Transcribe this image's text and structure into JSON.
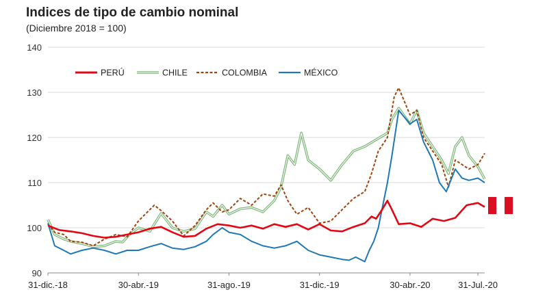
{
  "chart_data": {
    "type": "line",
    "title": "Indices de tipo de cambio nominal",
    "subtitle": "(Diciembre 2018 = 100)",
    "xlabel": "",
    "ylabel": "",
    "ylim": [
      90,
      140
    ],
    "yticks": [
      90,
      100,
      110,
      120,
      130,
      140
    ],
    "x_tick_labels": [
      "31-dic.-18",
      "30-abr.-19",
      "31-ago.-19",
      "31-dic.-19",
      "30-abr.-20",
      "31-Jul.-20"
    ],
    "x_tick_months": [
      0,
      4,
      8,
      12,
      16,
      19
    ],
    "grid": true,
    "legend_position": "top-left",
    "series": [
      {
        "name": "PERÚ",
        "color": "#e30613",
        "style": "solid",
        "x": [
          0,
          0.5,
          1,
          1.5,
          2,
          2.5,
          3,
          3.5,
          4,
          4.5,
          5,
          5.5,
          6,
          6.5,
          7,
          7.5,
          8,
          8.5,
          9,
          9.5,
          10,
          10.5,
          11,
          11.5,
          12,
          12.5,
          13,
          13.5,
          14,
          14.3,
          14.5,
          14.7,
          15,
          15.2,
          15.5,
          16,
          16.5,
          17,
          17.5,
          18,
          18.5,
          19,
          19.3
        ],
        "values": [
          100.5,
          99.5,
          99.2,
          98.8,
          98.2,
          97.8,
          98.0,
          98.5,
          99.0,
          99.8,
          100.2,
          99.0,
          98.0,
          98.2,
          99.8,
          100.8,
          100.5,
          100.0,
          100.5,
          99.8,
          100.8,
          100.2,
          100.8,
          99.6,
          100.8,
          99.4,
          99.2,
          100.2,
          101.0,
          102.5,
          102.0,
          103.5,
          106.0,
          104.0,
          100.8,
          101.0,
          100.2,
          102.0,
          101.5,
          102.2,
          105.0,
          105.5,
          104.6
        ]
      },
      {
        "name": "CHILE",
        "color": "#7fb87a",
        "style": "double",
        "x": [
          0,
          0.3,
          0.7,
          1,
          1.5,
          2,
          2.5,
          3,
          3.3,
          3.6,
          4,
          4.5,
          5,
          5.5,
          6,
          6.5,
          7,
          7.3,
          7.7,
          8,
          8.5,
          9,
          9.5,
          10,
          10.3,
          10.6,
          10.9,
          11.2,
          11.5,
          12,
          12.5,
          13,
          13.5,
          14,
          14.5,
          15,
          15.2,
          15.5,
          16,
          16.3,
          16.6,
          17,
          17.4,
          17.7,
          18,
          18.3,
          18.6,
          19,
          19.3
        ],
        "values": [
          101.8,
          98.5,
          97.5,
          97.0,
          96.5,
          95.8,
          96.0,
          97.0,
          96.8,
          98.5,
          100.0,
          99.2,
          103.2,
          100.0,
          99.2,
          99.8,
          103.5,
          102.5,
          105.0,
          103.0,
          104.2,
          104.5,
          103.5,
          106.0,
          109.0,
          116.0,
          114.0,
          121.0,
          115.0,
          113.0,
          110.5,
          114.0,
          117.0,
          118.0,
          119.5,
          121.0,
          124.0,
          126.5,
          123.0,
          126.0,
          121.0,
          118.0,
          115.0,
          112.0,
          118.0,
          120.0,
          116.0,
          113.5,
          110.8
        ]
      },
      {
        "name": "COLOMBIA",
        "color": "#a0420a",
        "style": "dashed",
        "x": [
          0,
          0.3,
          0.7,
          1,
          1.5,
          2,
          2.5,
          3,
          3.5,
          4,
          4.3,
          4.7,
          5,
          5.5,
          6,
          6.5,
          7,
          7.3,
          7.7,
          8,
          8.5,
          9,
          9.5,
          10,
          10.3,
          10.6,
          11,
          11.5,
          12,
          12.5,
          13,
          13.5,
          14,
          14.3,
          14.6,
          15,
          15.3,
          15.5,
          16,
          16.3,
          16.6,
          17,
          17.4,
          17.7,
          18,
          18.3,
          18.6,
          19,
          19.3
        ],
        "values": [
          100.8,
          99.0,
          98.5,
          97.0,
          96.8,
          96.0,
          97.5,
          98.5,
          98.0,
          101.5,
          103.0,
          105.0,
          103.8,
          101.5,
          98.2,
          100.5,
          104.0,
          105.5,
          103.5,
          104.0,
          106.5,
          105.0,
          107.5,
          107.0,
          109.5,
          106.0,
          103.0,
          104.5,
          101.0,
          101.5,
          104.0,
          106.5,
          108.0,
          112.0,
          117.0,
          120.0,
          129.0,
          131.0,
          125.0,
          126.0,
          120.0,
          117.0,
          114.0,
          109.0,
          115.0,
          114.0,
          113.0,
          114.0,
          116.5
        ]
      },
      {
        "name": "MÉXICO",
        "color": "#1f77b4",
        "style": "solid",
        "x": [
          0,
          0.3,
          0.7,
          1,
          1.5,
          2,
          2.5,
          3,
          3.5,
          4,
          4.5,
          5,
          5.5,
          6,
          6.5,
          7,
          7.3,
          7.7,
          8,
          8.5,
          9,
          9.5,
          10,
          10.5,
          11,
          11.5,
          12,
          12.5,
          13,
          13.3,
          13.6,
          14,
          14.2,
          14.4,
          14.6,
          14.8,
          15,
          15.2,
          15.5,
          16,
          16.3,
          16.6,
          17,
          17.3,
          17.6,
          18,
          18.3,
          18.6,
          19,
          19.3
        ],
        "values": [
          101.0,
          96.0,
          95.0,
          94.2,
          95.0,
          95.5,
          95.0,
          94.2,
          95.0,
          95.0,
          95.8,
          96.5,
          95.5,
          95.2,
          95.8,
          97.0,
          98.5,
          100.0,
          99.0,
          98.5,
          97.0,
          96.0,
          95.5,
          96.0,
          97.0,
          95.0,
          94.0,
          93.5,
          93.0,
          92.8,
          93.5,
          92.5,
          95.0,
          97.0,
          100.0,
          105.0,
          110.0,
          116.0,
          126.0,
          123.0,
          124.0,
          119.0,
          115.0,
          110.0,
          108.0,
          113.0,
          111.0,
          110.5,
          111.0,
          110.0
        ]
      }
    ]
  },
  "flag": {
    "name": "Peru flag",
    "colors": [
      "#d91023",
      "#ffffff",
      "#d91023"
    ]
  }
}
